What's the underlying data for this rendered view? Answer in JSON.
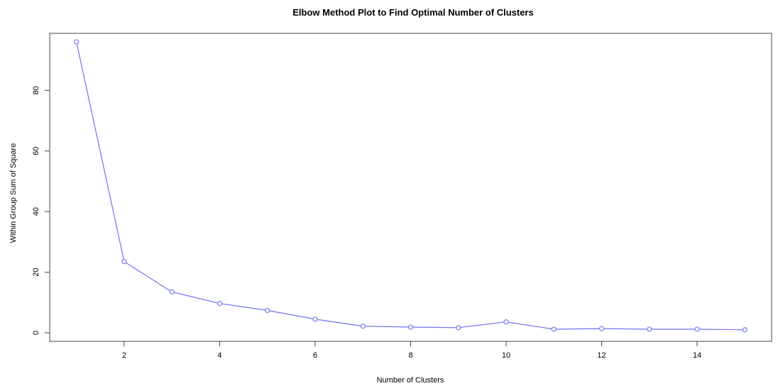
{
  "chart_data": {
    "type": "line",
    "title": "Elbow Method Plot to Find Optimal Number of Clusters",
    "xlabel": "Number of Clusters",
    "ylabel": "Within Group Sum of Square",
    "x": [
      1,
      2,
      3,
      4,
      5,
      6,
      7,
      8,
      9,
      10,
      11,
      12,
      13,
      14,
      15
    ],
    "series": [
      {
        "values": [
          96,
          23.5,
          13.5,
          9.7,
          7.4,
          4.5,
          2.2,
          1.9,
          1.7,
          3.6,
          1.2,
          1.4,
          1.2,
          1.2,
          1.0
        ]
      }
    ],
    "xlim": [
      0.44,
      15.56
    ],
    "ylim": [
      -2.8,
      98.8
    ],
    "xticks": [
      2,
      4,
      6,
      8,
      10,
      12,
      14
    ],
    "yticks": [
      0,
      20,
      40,
      60,
      80
    ],
    "marker": "open-circle",
    "line_color": "#7b7bf2",
    "grid": false,
    "legend": "none"
  }
}
